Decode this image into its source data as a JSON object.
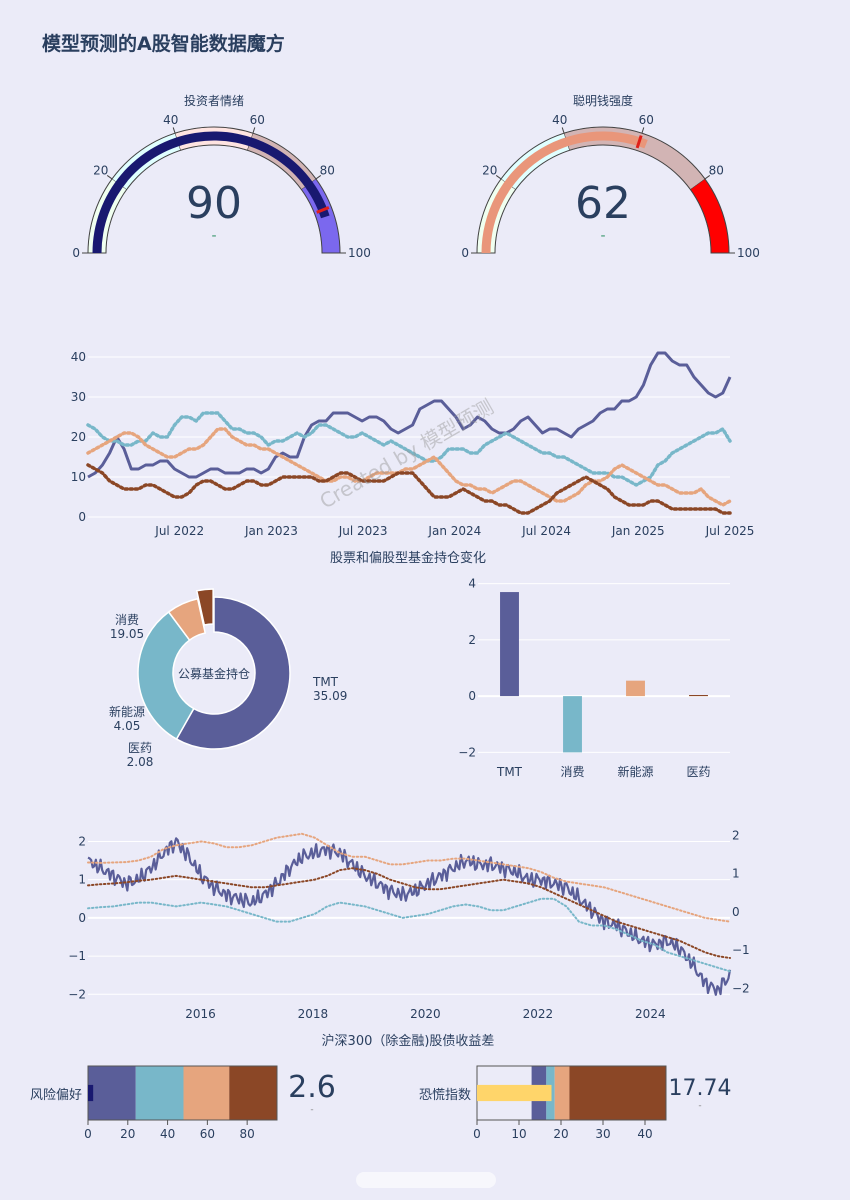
{
  "page_title": "模型预测的A股智能数据魔方",
  "watermark": "Created by 模型预测",
  "colors": {
    "navy": "#5a5e99",
    "teal": "#78b7c9",
    "salmon": "#e6a57e",
    "brown": "#8b4726",
    "bg": "#ebebf8"
  },
  "chart_data": [
    {
      "type": "gauge",
      "title": "投资者情绪",
      "value": 90,
      "delta_text": "-",
      "range": [
        0,
        100
      ],
      "ticks": [
        "0",
        "20",
        "40",
        "60",
        "80",
        "100"
      ],
      "tick_values": [
        0,
        20,
        40,
        60,
        80,
        100
      ],
      "steps": [
        {
          "range": [
            0,
            20
          ],
          "color": "#f0fff0"
        },
        {
          "range": [
            20,
            40
          ],
          "color": "#e0ffff"
        },
        {
          "range": [
            40,
            60
          ],
          "color": "#ffe4e1"
        },
        {
          "range": [
            60,
            80
          ],
          "color": "#d2b4b4"
        },
        {
          "range": [
            80,
            100
          ],
          "color": "#7b68ee"
        }
      ],
      "bar_color": "#191970",
      "threshold": 88
    },
    {
      "type": "gauge",
      "title": "聪明钱强度",
      "value": 62,
      "delta_text": "-",
      "range": [
        0,
        100
      ],
      "ticks": [
        "0",
        "20",
        "40",
        "60",
        "80",
        "100"
      ],
      "tick_values": [
        0,
        20,
        40,
        60,
        80,
        100
      ],
      "steps": [
        {
          "range": [
            0,
            20
          ],
          "color": "#f0fff0"
        },
        {
          "range": [
            20,
            40
          ],
          "color": "#e0ffff"
        },
        {
          "range": [
            40,
            80
          ],
          "color": "#d2b4b4"
        },
        {
          "range": [
            80,
            100
          ],
          "color": "#ff0000"
        }
      ],
      "bar_color": "#e9967a",
      "threshold": 60
    },
    {
      "type": "line",
      "title": "股票和偏股型基金持仓变化",
      "x_start": "2022-01",
      "x_end": "2025-07",
      "x_ticks": [
        "Jul 2022",
        "Jan 2023",
        "Jul 2023",
        "Jan 2024",
        "Jul 2024",
        "Jan 2025",
        "Jul 2025"
      ],
      "y_ticks": [
        "0",
        "10",
        "20",
        "30",
        "40"
      ],
      "ylim": [
        0,
        42
      ],
      "series": [
        {
          "values": [
            10,
            11,
            13,
            16,
            20,
            17,
            12,
            12,
            13,
            13,
            14,
            14,
            12,
            11,
            10,
            10,
            11,
            12,
            12,
            11,
            11,
            11,
            12,
            12,
            11,
            12,
            15,
            16,
            15,
            15,
            20,
            23,
            24,
            24,
            26,
            26,
            26,
            25,
            24,
            25,
            25,
            24,
            22,
            21,
            22,
            23,
            27,
            28,
            29,
            29,
            27,
            25,
            22,
            23,
            25,
            24,
            22,
            21,
            21,
            22,
            24,
            25,
            23,
            21,
            22,
            22,
            21,
            20,
            22,
            23,
            24,
            26,
            27,
            27,
            29,
            29,
            30,
            33,
            38,
            41,
            41,
            39,
            38,
            38,
            35,
            33,
            31,
            30,
            31,
            35
          ],
          "style": "solid",
          "color": "#5a5e99"
        },
        {
          "values": [
            23,
            22,
            20,
            19,
            19,
            18,
            18,
            19,
            19,
            21,
            20,
            20,
            23,
            25,
            25,
            24,
            26,
            26,
            26,
            24,
            22,
            22,
            21,
            21,
            20,
            18,
            19,
            19,
            20,
            21,
            20,
            21,
            23,
            23,
            22,
            21,
            20,
            20,
            21,
            20,
            19,
            18,
            19,
            18,
            17,
            16,
            15,
            14,
            14,
            15,
            17,
            17,
            17,
            16,
            16,
            18,
            19,
            20,
            21,
            20,
            19,
            18,
            17,
            16,
            16,
            15,
            15,
            14,
            13,
            12,
            11,
            11,
            11,
            10,
            10,
            9,
            8,
            9,
            10,
            13,
            14,
            16,
            17,
            18,
            19,
            20,
            21,
            21,
            22,
            19
          ],
          "style": "dot",
          "color": "#78b7c9"
        },
        {
          "values": [
            16,
            17,
            18,
            19,
            20,
            21,
            21,
            20,
            18,
            17,
            16,
            15,
            15,
            16,
            17,
            17,
            18,
            20,
            22,
            22,
            20,
            19,
            18,
            18,
            17,
            17,
            16,
            15,
            14,
            13,
            12,
            11,
            10,
            9,
            9,
            10,
            10,
            9,
            9,
            10,
            11,
            11,
            11,
            11,
            12,
            12,
            13,
            14,
            15,
            13,
            11,
            9,
            8,
            8,
            7,
            7,
            6,
            7,
            8,
            9,
            9,
            8,
            7,
            6,
            5,
            4,
            4,
            5,
            6,
            8,
            9,
            9,
            10,
            12,
            13,
            12,
            11,
            10,
            9,
            8,
            8,
            7,
            6,
            6,
            6,
            7,
            5,
            4,
            3,
            4
          ],
          "style": "dot",
          "color": "#e6a57e"
        },
        {
          "values": [
            13,
            12,
            11,
            9,
            8,
            7,
            7,
            7,
            8,
            8,
            7,
            6,
            5,
            5,
            6,
            8,
            9,
            9,
            8,
            7,
            7,
            8,
            9,
            9,
            8,
            8,
            9,
            10,
            10,
            10,
            10,
            10,
            9,
            9,
            10,
            11,
            11,
            10,
            9,
            9,
            9,
            9,
            10,
            11,
            11,
            11,
            9,
            7,
            5,
            5,
            5,
            6,
            7,
            6,
            5,
            4,
            4,
            3,
            3,
            2,
            1,
            1,
            2,
            3,
            4,
            6,
            7,
            8,
            9,
            10,
            9,
            8,
            7,
            5,
            4,
            3,
            3,
            3,
            4,
            4,
            3,
            2,
            2,
            2,
            2,
            2,
            2,
            2,
            1,
            1
          ],
          "style": "dot",
          "color": "#8b4726"
        }
      ]
    },
    {
      "type": "pie",
      "center_label": "公募基金持仓",
      "labels": [
        "TMT",
        "消费",
        "新能源",
        "医药"
      ],
      "values": [
        35.09,
        19.05,
        4.05,
        2.08
      ],
      "value_texts": [
        "35.09",
        "19.05",
        "4.05",
        "2.08"
      ],
      "colors": [
        "#5a5e99",
        "#78b7c9",
        "#e6a57e",
        "#8b4726"
      ],
      "pull_index": 3
    },
    {
      "type": "bar",
      "categories": [
        "TMT",
        "消费",
        "新能源",
        "医药"
      ],
      "values": [
        3.7,
        -2.0,
        0.55,
        0.04
      ],
      "colors": [
        "#5a5e99",
        "#78b7c9",
        "#e6a57e",
        "#8b4726"
      ],
      "ylim": [
        -2.2,
        4.2
      ],
      "y_ticks": [
        "4",
        "2",
        "0",
        "−2"
      ],
      "y_tick_values": [
        4,
        2,
        0,
        -2
      ]
    },
    {
      "type": "line",
      "title": "沪深300（除金融)股债收益差",
      "x_start": "2014-01",
      "x_end": "2025-06",
      "x_ticks": [
        "2016",
        "2018",
        "2020",
        "2022",
        "2024"
      ],
      "x_tick_values": [
        2016,
        2018,
        2020,
        2022,
        2024
      ],
      "y_ticks": [
        "2",
        "1",
        "0",
        "−1",
        "−2"
      ],
      "y_tick_values": [
        2,
        1,
        0,
        -1,
        -2
      ],
      "y2_ticks": [
        "2",
        "1",
        "0",
        "−1",
        "−2"
      ],
      "ylim": [
        -2.15,
        2.3
      ],
      "series": [
        {
          "values": [
            1.5,
            1.3,
            1.1,
            0.9,
            1.0,
            1.3,
            1.7,
            2.0,
            1.6,
            1.1,
            0.8,
            0.6,
            0.5,
            0.4,
            0.6,
            0.9,
            1.3,
            1.6,
            1.7,
            1.8,
            1.7,
            1.4,
            1.1,
            0.9,
            0.7,
            0.6,
            0.7,
            0.9,
            1.1,
            1.3,
            1.5,
            1.4,
            1.4,
            1.3,
            1.2,
            1.0,
            1.0,
            0.9,
            0.8,
            0.5,
            0.2,
            -0.1,
            -0.2,
            -0.4,
            -0.6,
            -0.7,
            -0.6,
            -0.8,
            -1.2,
            -1.7,
            -1.9,
            -1.5
          ],
          "style": "solid",
          "color": "#5a5e99"
        },
        {
          "values": [
            1.45,
            1.44,
            1.45,
            1.46,
            1.5,
            1.6,
            1.8,
            1.9,
            1.95,
            2.0,
            1.95,
            1.85,
            1.85,
            1.9,
            2.0,
            2.1,
            2.15,
            2.2,
            2.1,
            1.9,
            1.7,
            1.6,
            1.6,
            1.5,
            1.4,
            1.4,
            1.45,
            1.5,
            1.5,
            1.55,
            1.55,
            1.5,
            1.45,
            1.4,
            1.35,
            1.3,
            1.2,
            1.05,
            0.95,
            0.9,
            0.85,
            0.8,
            0.7,
            0.6,
            0.5,
            0.4,
            0.3,
            0.2,
            0.1,
            0.0,
            -0.05,
            -0.1
          ],
          "style": "dot",
          "color": "#e6a57e"
        },
        {
          "values": [
            0.85,
            0.88,
            0.9,
            0.93,
            0.97,
            1.0,
            1.05,
            1.1,
            1.05,
            1.0,
            0.95,
            0.9,
            0.85,
            0.8,
            0.8,
            0.85,
            0.9,
            0.95,
            1.0,
            1.1,
            1.25,
            1.3,
            1.25,
            1.15,
            1.0,
            0.9,
            0.8,
            0.75,
            0.75,
            0.8,
            0.85,
            0.9,
            0.95,
            1.0,
            0.95,
            0.9,
            0.8,
            0.65,
            0.5,
            0.35,
            0.2,
            0.05,
            -0.1,
            -0.2,
            -0.3,
            -0.4,
            -0.5,
            -0.6,
            -0.75,
            -0.9,
            -1.0,
            -1.05
          ],
          "style": "dot",
          "color": "#8b4726"
        },
        {
          "values": [
            0.25,
            0.28,
            0.3,
            0.35,
            0.4,
            0.4,
            0.35,
            0.3,
            0.35,
            0.4,
            0.35,
            0.3,
            0.2,
            0.1,
            0.0,
            -0.1,
            -0.1,
            0.0,
            0.1,
            0.3,
            0.4,
            0.35,
            0.3,
            0.2,
            0.1,
            0.0,
            0.05,
            0.1,
            0.2,
            0.3,
            0.35,
            0.3,
            0.2,
            0.2,
            0.3,
            0.4,
            0.5,
            0.5,
            0.3,
            -0.1,
            -0.2,
            -0.2,
            -0.3,
            -0.45,
            -0.6,
            -0.7,
            -0.9,
            -1.0,
            -1.1,
            -1.2,
            -1.3,
            -1.4
          ],
          "style": "dot",
          "color": "#78b7c9"
        }
      ]
    },
    {
      "type": "bullet",
      "label": "风险偏好",
      "value": 2.6,
      "value_text": "2.6",
      "delta_text": "-",
      "range": [
        0,
        95
      ],
      "x_ticks": [
        "0",
        "20",
        "40",
        "60",
        "80"
      ],
      "x_tick_values": [
        0,
        20,
        40,
        60,
        80
      ],
      "steps": [
        {
          "range": [
            0,
            24
          ],
          "color": "#5a5e99"
        },
        {
          "range": [
            24,
            48
          ],
          "color": "#78b7c9"
        },
        {
          "range": [
            48,
            71
          ],
          "color": "#e6a57e"
        },
        {
          "range": [
            71,
            95
          ],
          "color": "#8b4726"
        }
      ],
      "bar_color": "#191970"
    },
    {
      "type": "bullet",
      "label": "恐慌指数",
      "value": 17.74,
      "value_text": "17.74",
      "delta_text": "-",
      "range": [
        0,
        45
      ],
      "x_ticks": [
        "0",
        "10",
        "20",
        "30",
        "40"
      ],
      "x_tick_values": [
        0,
        10,
        20,
        30,
        40
      ],
      "steps": [
        {
          "range": [
            0,
            13
          ],
          "color": "#ebebf8"
        },
        {
          "range": [
            13,
            16.5
          ],
          "color": "#5a5e99"
        },
        {
          "range": [
            16.5,
            18.5
          ],
          "color": "#78b7c9"
        },
        {
          "range": [
            18.5,
            22
          ],
          "color": "#e6a57e"
        },
        {
          "range": [
            22,
            45
          ],
          "color": "#8b4726"
        }
      ],
      "bar_color": "#ffd56a"
    }
  ]
}
